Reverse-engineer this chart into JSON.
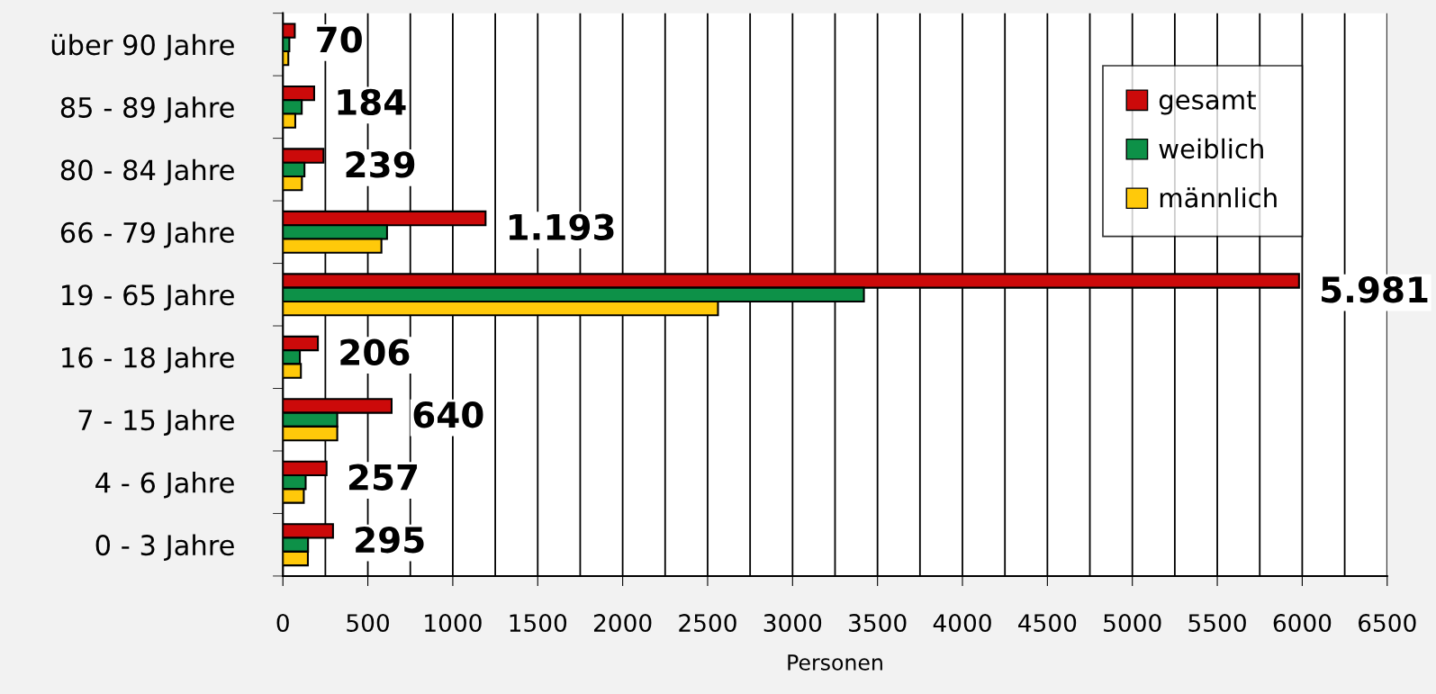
{
  "chart_data": {
    "type": "bar",
    "orientation": "horizontal",
    "xlabel": "Personen",
    "categories": [
      "über 90 Jahre",
      "85 - 89 Jahre",
      "80 - 84 Jahre",
      "66 - 79 Jahre",
      "19 - 65 Jahre",
      "16 - 18 Jahre",
      "7 - 15 Jahre",
      "4 - 6 Jahre",
      "0 - 3 Jahre"
    ],
    "series": [
      {
        "name": "gesamt",
        "color": "#cc0a0a",
        "values": [
          70,
          184,
          239,
          1193,
          5981,
          206,
          640,
          257,
          295
        ],
        "value_labels": [
          "70",
          "184",
          "239",
          "1.193",
          "5.981",
          "206",
          "640",
          "257",
          "295"
        ]
      },
      {
        "name": "weiblich",
        "color": "#0d9148",
        "values": [
          38,
          111,
          127,
          613,
          3420,
          100,
          320,
          134,
          148
        ]
      },
      {
        "name": "männlich",
        "color": "#ffc90a",
        "values": [
          32,
          73,
          112,
          580,
          2561,
          106,
          320,
          123,
          147
        ]
      }
    ],
    "xlim": [
      0,
      6500
    ],
    "xticks": [
      0,
      500,
      1000,
      1500,
      2000,
      2500,
      3000,
      3500,
      4000,
      4500,
      5000,
      5500,
      6000,
      6500
    ],
    "grid": "x",
    "legend": "top right"
  }
}
